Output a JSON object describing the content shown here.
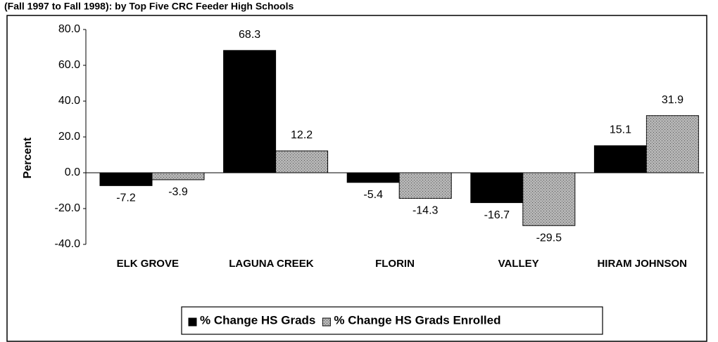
{
  "chart_data": {
    "type": "bar",
    "title": "(Fall 1997 to Fall 1998): by Top Five CRC Feeder High Schools",
    "y_label": "Percent",
    "categories": [
      "ELK GROVE",
      "LAGUNA CREEK",
      "FLORIN",
      "VALLEY",
      "HIRAM JOHNSON"
    ],
    "series": [
      {
        "name": "% Change HS Grads",
        "color": "#000000",
        "values": [
          -7.2,
          68.3,
          -5.4,
          -16.7,
          15.1
        ]
      },
      {
        "name": "% Change HS Grads Enrolled",
        "color": "#b4b4b4",
        "values": [
          -3.9,
          12.2,
          -14.3,
          -29.5,
          31.9
        ]
      }
    ],
    "ylim": [
      -40,
      80
    ],
    "yticks": [
      {
        "value": -40,
        "label": "-40.0"
      },
      {
        "value": -20,
        "label": "-20.0"
      },
      {
        "value": 0,
        "label": "0.0"
      },
      {
        "value": 20,
        "label": "20.0"
      },
      {
        "value": 40,
        "label": "40.0"
      },
      {
        "value": 60,
        "label": "60.0"
      },
      {
        "value": 80,
        "label": "80.0"
      }
    ],
    "legend": "bottom"
  }
}
